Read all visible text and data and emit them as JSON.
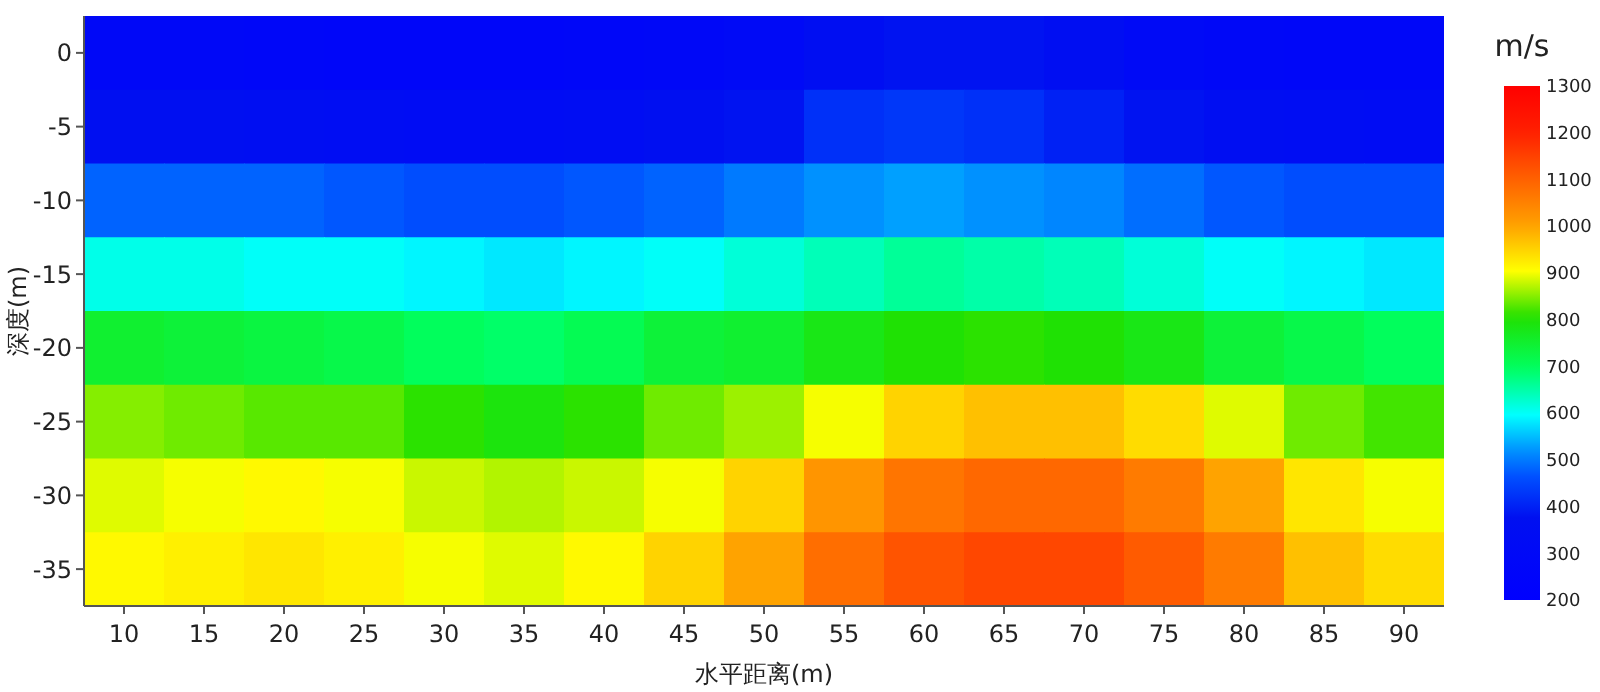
{
  "chart_data": {
    "type": "heatmap",
    "xlabel": "水平距离(m)",
    "ylabel": "深度(m)",
    "clabel": "m/s",
    "clim": [
      200,
      1300
    ],
    "cticks": [
      200,
      300,
      400,
      500,
      600,
      700,
      800,
      900,
      1000,
      1100,
      1200,
      1300
    ],
    "categories": [
      "10",
      "15",
      "20",
      "25",
      "30",
      "35",
      "40",
      "45",
      "50",
      "55",
      "60",
      "65",
      "70",
      "75",
      "80",
      "85",
      "90"
    ],
    "y_categories": [
      "0",
      "-5",
      "-10",
      "-15",
      "-20",
      "-25",
      "-30",
      "-35"
    ],
    "cells": [
      [
        290,
        290,
        280,
        270,
        270,
        270,
        280,
        290,
        310,
        350,
        380,
        380,
        350,
        310,
        290,
        280,
        280
      ],
      [
        370,
        360,
        350,
        340,
        330,
        330,
        340,
        360,
        380,
        420,
        430,
        420,
        400,
        380,
        350,
        340,
        330
      ],
      [
        480,
        480,
        480,
        470,
        460,
        460,
        470,
        480,
        500,
        520,
        530,
        520,
        510,
        490,
        470,
        460,
        460
      ],
      [
        610,
        610,
        600,
        600,
        590,
        580,
        590,
        600,
        620,
        640,
        660,
        650,
        640,
        620,
        600,
        590,
        580
      ],
      [
        750,
        740,
        730,
        720,
        700,
        690,
        710,
        740,
        750,
        780,
        800,
        810,
        800,
        780,
        740,
        720,
        700
      ],
      [
        850,
        840,
        830,
        830,
        810,
        790,
        810,
        840,
        860,
        900,
        950,
        970,
        970,
        940,
        890,
        840,
        820
      ],
      [
        890,
        900,
        910,
        900,
        880,
        870,
        880,
        900,
        950,
        1020,
        1070,
        1090,
        1090,
        1060,
        1000,
        930,
        900
      ],
      [
        910,
        920,
        930,
        920,
        900,
        890,
        910,
        950,
        1000,
        1080,
        1120,
        1140,
        1140,
        1110,
        1060,
        970,
        940
      ]
    ]
  }
}
